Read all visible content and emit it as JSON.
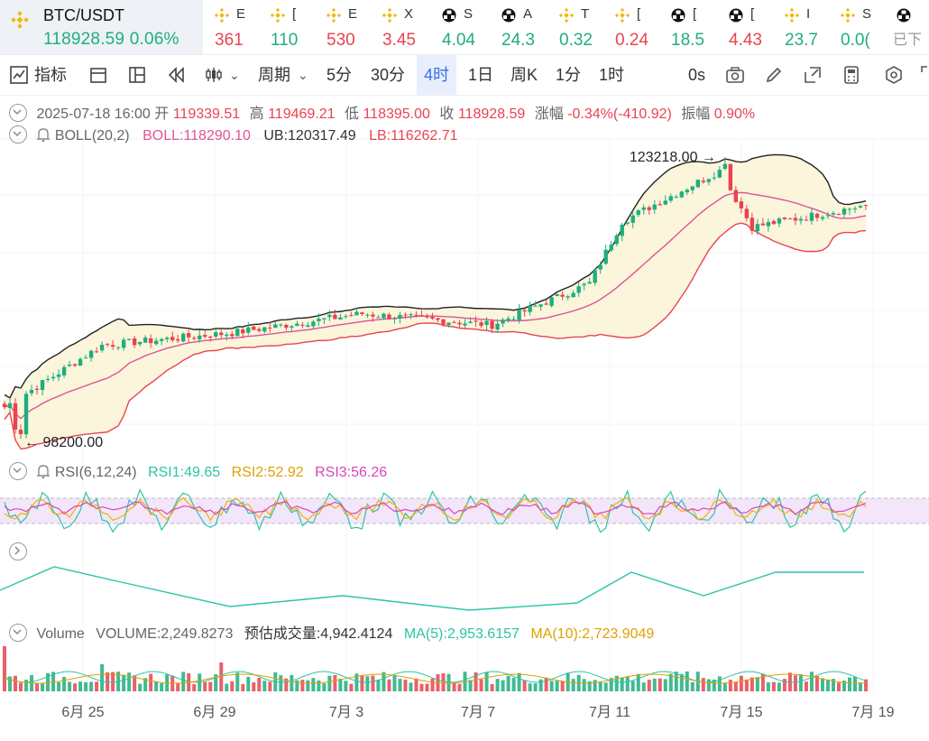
{
  "ticker": {
    "pair": "BTC/USDT",
    "price": "118928.59",
    "change": "0.06%",
    "items": [
      {
        "icon": "binance-icon",
        "name": "E",
        "value": "361",
        "color": "dn"
      },
      {
        "icon": "binance-icon",
        "name": "[",
        "value": "110",
        "color": "up"
      },
      {
        "icon": "binance-icon",
        "name": "E",
        "value": "530",
        "color": "dn"
      },
      {
        "icon": "binance-icon",
        "name": "X",
        "value": "3.45",
        "color": "dn"
      },
      {
        "icon": "soccer-ball-icon",
        "name": "S",
        "value": "4.04",
        "color": "up"
      },
      {
        "icon": "soccer-ball-icon",
        "name": "A",
        "value": "24.3",
        "color": "up"
      },
      {
        "icon": "binance-icon",
        "name": "T",
        "value": "0.32",
        "color": "up"
      },
      {
        "icon": "binance-icon",
        "name": "[",
        "value": "0.24",
        "color": "dn"
      },
      {
        "icon": "soccer-ball-icon",
        "name": "[",
        "value": "18.5",
        "color": "up"
      },
      {
        "icon": "soccer-ball-icon",
        "name": "[",
        "value": "4.43",
        "color": "dn"
      },
      {
        "icon": "binance-icon",
        "name": "I",
        "value": "23.7",
        "color": "up"
      },
      {
        "icon": "binance-icon",
        "name": "S",
        "value": "0.0(",
        "color": "up"
      },
      {
        "icon": "soccer-ball-icon",
        "name": "",
        "value": "已下",
        "color": "grey"
      }
    ]
  },
  "toolbar": {
    "indicators": "指标",
    "period": "周期",
    "intervals": [
      "5分",
      "30分",
      "4时",
      "1日",
      "周K",
      "1分",
      "1时"
    ],
    "active_interval": "4时",
    "countdown": "0s"
  },
  "ohlc": {
    "datetime": "2025-07-18 16:00",
    "open_label": "开",
    "open": "119339.51",
    "high_label": "高",
    "high": "119469.21",
    "low_label": "低",
    "low": "118395.00",
    "close_label": "收",
    "close": "118928.59",
    "change_label": "涨幅",
    "change": "-0.34%(-410.92)",
    "amp_label": "振幅",
    "amp": "0.90%"
  },
  "boll": {
    "name": "BOLL(20,2)",
    "mid": "BOLL:118290.10",
    "ub": "UB:120317.49",
    "lb": "LB:116262.71",
    "high_marker": "123218.00",
    "low_marker": "98200.00"
  },
  "rsi": {
    "name": "RSI(6,12,24)",
    "rsi1": "RSI1:49.65",
    "rsi2": "RSI2:52.92",
    "rsi3": "RSI3:56.26"
  },
  "volume": {
    "name": "Volume",
    "vol": "VOLUME:2,249.8273",
    "est": "预估成交量:4,942.4124",
    "ma5": "MA(5):2,953.6157",
    "ma10": "MA(10):2,723.9049"
  },
  "xaxis": [
    "6月 25",
    "6月 29",
    "7月 3",
    "7月 7",
    "7月 11",
    "7月 15",
    "7月 19"
  ],
  "colors": {
    "up": "#1fae7e",
    "down": "#e9434f",
    "active": "#3574e8",
    "boll_mid": "#e05296",
    "boll_band": "#fbf5dc",
    "rsi1": "#2bc4a8",
    "rsi2": "#f5b100",
    "rsi3": "#d946b8"
  },
  "chart_data": {
    "type": "candlestick",
    "title": "BTC/USDT 4时",
    "interval": "4h",
    "ylim": [
      98200,
      123218
    ],
    "x_range": [
      "2025-06-22",
      "2025-07-18 16:00"
    ],
    "boll_last": {
      "mid": 118290.1,
      "ub": 120317.49,
      "lb": 116262.71
    },
    "marked_high": 123218.0,
    "marked_low": 98200.0,
    "key_closes": [
      {
        "date": "2025-06-22",
        "close": 101000
      },
      {
        "date": "2025-06-25",
        "close": 106500
      },
      {
        "date": "2025-06-29",
        "close": 107600
      },
      {
        "date": "2025-07-03",
        "close": 109300
      },
      {
        "date": "2025-07-07",
        "close": 108300
      },
      {
        "date": "2025-07-10",
        "close": 112000
      },
      {
        "date": "2025-07-11",
        "close": 117500
      },
      {
        "date": "2025-07-14",
        "close": 122000
      },
      {
        "date": "2025-07-15",
        "close": 117000
      },
      {
        "date": "2025-07-18",
        "close": 118928.59
      }
    ],
    "rsi_last": {
      "rsi1": 49.65,
      "rsi2": 52.92,
      "rsi3": 56.26
    },
    "volume_last": {
      "volume": 2249.8273,
      "ma5": 2953.6157,
      "ma10": 2723.9049
    }
  }
}
